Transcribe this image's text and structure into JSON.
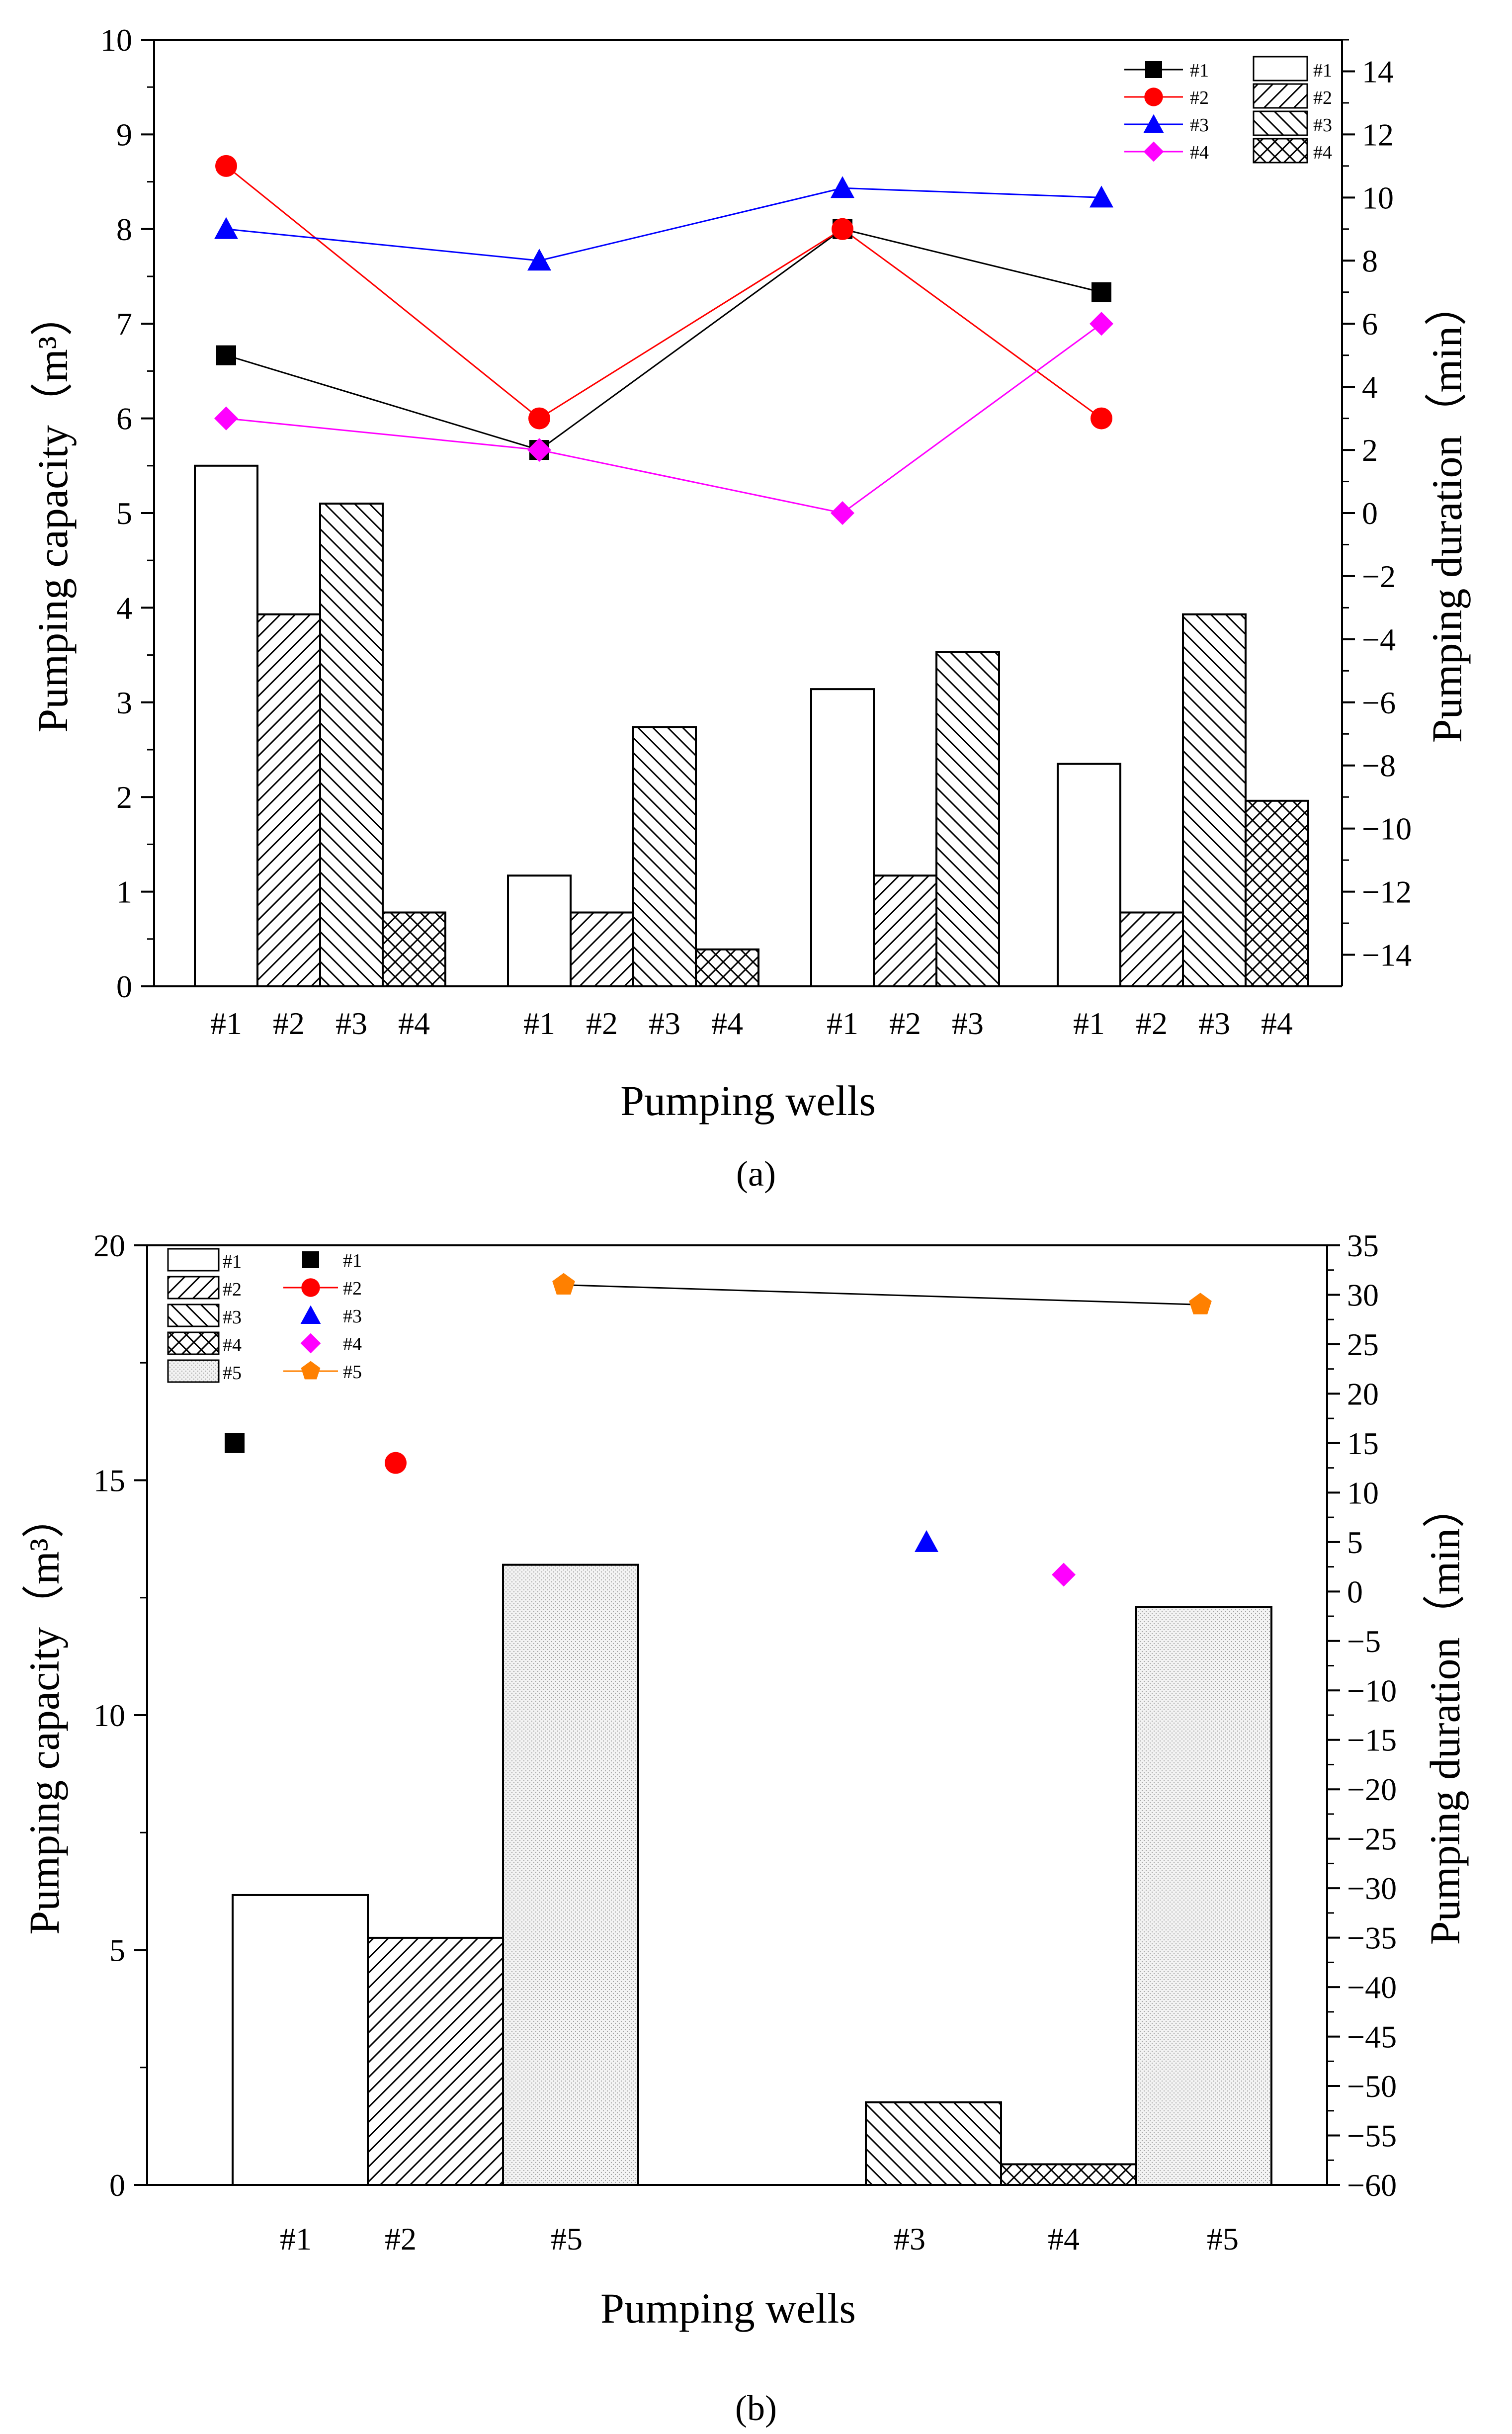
{
  "figure": {
    "captions": [
      "(a)",
      "(b)"
    ]
  },
  "chart_data": [
    {
      "panel": "a",
      "type": "bar",
      "xlabel": "Pumping wells",
      "ylabel": "Pumping capacity（m³）",
      "y2label": "Pumping duration（min）",
      "ylim": [
        0,
        10
      ],
      "y2lim": [
        -15,
        15
      ],
      "yticks": [
        "0",
        "1",
        "2",
        "3",
        "4",
        "5",
        "6",
        "7",
        "8",
        "9",
        "10"
      ],
      "y2ticks": [
        "−14",
        "−12",
        "−10",
        "−8",
        "−6",
        "−4",
        "−2",
        "0",
        "2",
        "4",
        "6",
        "8",
        "10",
        "12",
        "14"
      ],
      "groups": [
        {
          "labels": [
            "#1",
            "#2",
            "#3",
            "#4"
          ],
          "patterns": [
            "#1",
            "#2",
            "#3",
            "#4"
          ],
          "values": [
            5.5,
            3.93,
            5.1,
            0.78
          ]
        },
        {
          "labels": [
            "#1",
            "#2",
            "#3",
            "#4"
          ],
          "patterns": [
            "#1",
            "#2",
            "#3",
            "#4"
          ],
          "values": [
            1.17,
            0.78,
            2.74,
            0.39
          ]
        },
        {
          "labels": [
            "#1",
            "#2",
            "#3"
          ],
          "patterns": [
            "#1",
            "#2",
            "#3"
          ],
          "values": [
            3.14,
            1.17,
            3.53
          ]
        },
        {
          "labels": [
            "#1",
            "#2",
            "#3",
            "#4"
          ],
          "patterns": [
            "#1",
            "#2",
            "#3",
            "#4"
          ],
          "values": [
            2.35,
            0.78,
            3.93,
            1.96
          ]
        }
      ],
      "line_series": [
        {
          "name": "#1",
          "color": "#000000",
          "marker": "square",
          "y2": [
            5,
            2,
            9,
            7
          ]
        },
        {
          "name": "#2",
          "color": "#ff0000",
          "marker": "circle",
          "y2": [
            11,
            3,
            9,
            3
          ]
        },
        {
          "name": "#3",
          "color": "#0000ff",
          "marker": "triangle",
          "y2": [
            9,
            8,
            10.3,
            10
          ]
        },
        {
          "name": "#4",
          "color": "#ff00ff",
          "marker": "diamond",
          "y2": [
            3,
            2,
            0,
            6
          ]
        }
      ],
      "legend_lines": [
        "#1",
        "#2",
        "#3",
        "#4"
      ],
      "legend_bars": [
        "#1",
        "#2",
        "#3",
        "#4"
      ],
      "legend_position": "top-right"
    },
    {
      "panel": "b",
      "type": "bar",
      "xlabel": "Pumping wells",
      "ylabel": "Pumping capacity（m³）",
      "y2label": "Pumping duration（min）",
      "ylim": [
        0,
        20
      ],
      "y2lim": [
        -60,
        35
      ],
      "yticks": [
        "0",
        "5",
        "10",
        "15",
        "20"
      ],
      "y2ticks": [
        "−60",
        "−55",
        "−50",
        "−45",
        "−40",
        "−35",
        "−30",
        "−25",
        "−20",
        "−15",
        "−10",
        "−5",
        "0",
        "5",
        "10",
        "15",
        "20",
        "25",
        "30",
        "35"
      ],
      "groups": [
        {
          "labels": [
            "#1",
            "#2",
            "#5"
          ],
          "patterns": [
            "#1",
            "#2",
            "#5"
          ],
          "values": [
            6.17,
            5.26,
            13.2
          ]
        },
        {
          "labels": [
            "#3",
            "#4",
            "#5"
          ],
          "patterns": [
            "#3",
            "#4",
            "#5"
          ],
          "values": [
            1.76,
            0.44,
            12.3
          ]
        }
      ],
      "points": [
        {
          "name": "#1",
          "color": "#000000",
          "marker": "square",
          "y2": 15
        },
        {
          "name": "#2",
          "color": "#ff0000",
          "marker": "circle",
          "y2": 13
        },
        {
          "name": "#5",
          "color": "#ff8000",
          "marker": "pentagon",
          "y2": 31
        },
        {
          "name": "#3",
          "color": "#0000ff",
          "marker": "triangle",
          "y2": 5
        },
        {
          "name": "#4",
          "color": "#ff00ff",
          "marker": "diamond",
          "y2": 1.7
        },
        {
          "name": "#5",
          "color": "#ff8000",
          "marker": "pentagon",
          "y2": 29
        }
      ],
      "legend_bars": [
        "#1",
        "#2",
        "#3",
        "#4",
        "#5"
      ],
      "legend_points": [
        "#1",
        "#2",
        "#3",
        "#4",
        "#5"
      ],
      "legend_position": "top-left"
    }
  ]
}
